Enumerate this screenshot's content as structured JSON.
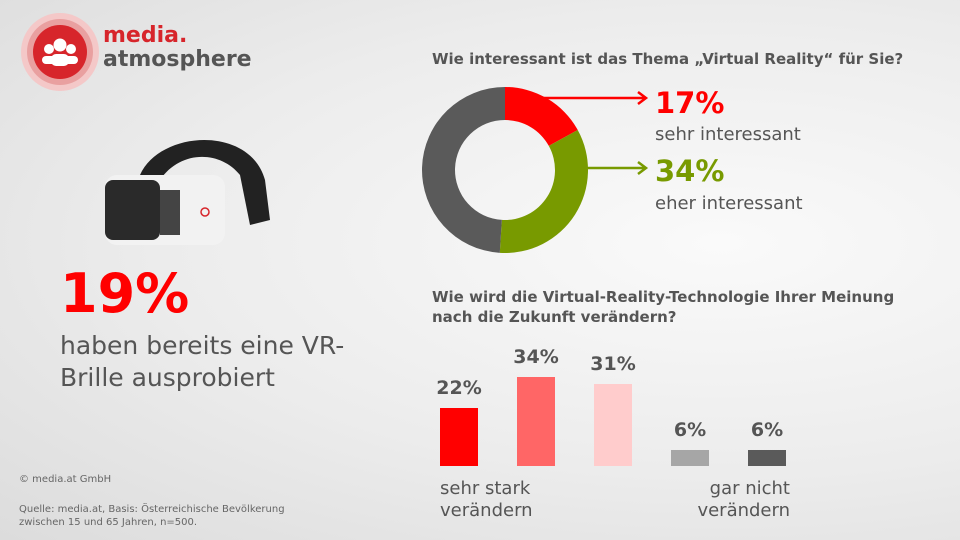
{
  "logo": {
    "line1": "media.",
    "line2": "atmosphere"
  },
  "headline": {
    "value": "19%",
    "text": "haben bereits eine VR-Brille ausprobiert"
  },
  "footer": {
    "copyright": "© media.at GmbH",
    "source": "Quelle: media.at, Basis: Österreichische Bevölkerung zwischen 15 und 65 Jahren, n=500."
  },
  "colors": {
    "red": "#ff0000",
    "green": "#789a00",
    "gray": "#5a5a5a"
  },
  "chart_data": [
    {
      "type": "pie",
      "title": "Wie interessant ist das Thema „Virtual Reality“ für Sie?",
      "slices": [
        {
          "label": "sehr interessant",
          "value": 17,
          "display": "17%",
          "color": "#ff0000"
        },
        {
          "label": "eher interessant",
          "value": 34,
          "display": "34%",
          "color": "#789a00"
        },
        {
          "label": "",
          "value": 49,
          "color": "#5a5a5a"
        }
      ]
    },
    {
      "type": "bar",
      "title": "Wie wird die Virtual-Reality-Technologie Ihrer Meinung nach die Zukunft verändern?",
      "values": [
        22,
        34,
        31,
        6,
        6
      ],
      "labels": [
        "22%",
        "34%",
        "31%",
        "6%",
        "6%"
      ],
      "colors": [
        "#ff0000",
        "#ff6666",
        "#ffcccc",
        "#a6a6a6",
        "#5a5a5a"
      ],
      "left_label": "sehr stark verändern",
      "right_label": "gar nicht verändern",
      "ylim": [
        0,
        40
      ]
    }
  ]
}
